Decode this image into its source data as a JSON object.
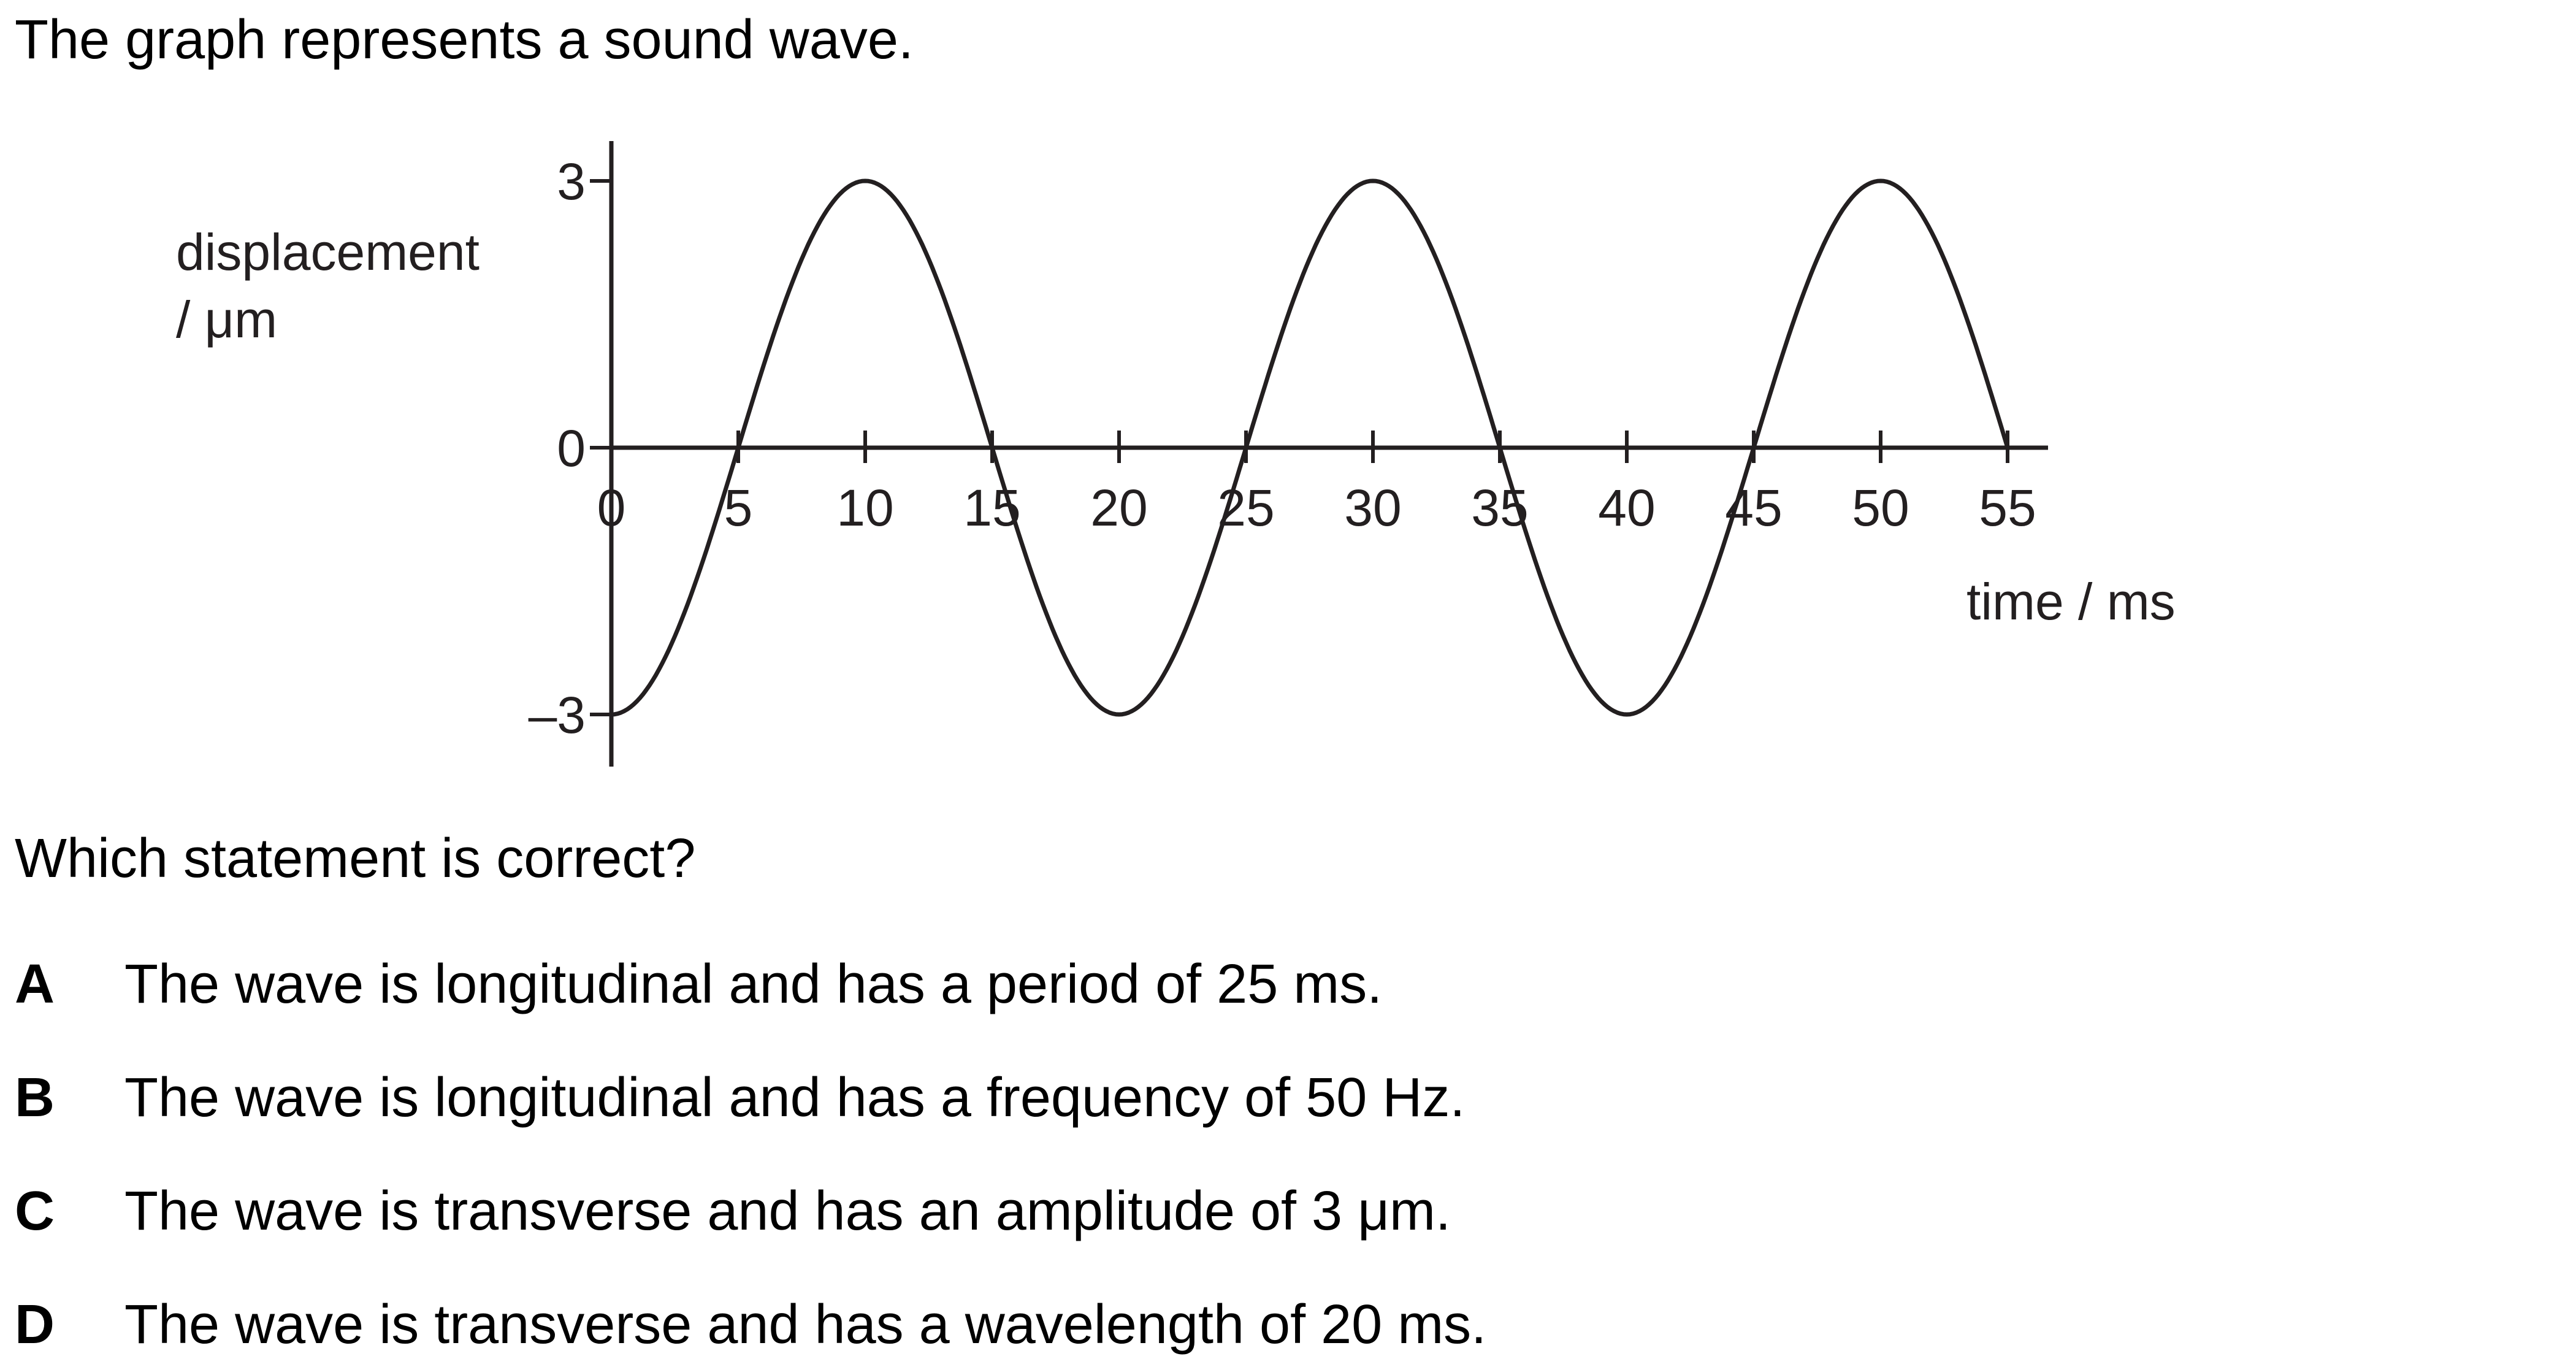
{
  "intro_text": "The graph represents a sound wave.",
  "question_text": "Which statement is correct?",
  "options": [
    {
      "letter": "A",
      "text": "The wave is longitudinal and has a period of 25 ms."
    },
    {
      "letter": "B",
      "text": "The wave is longitudinal and has a frequency of 50 Hz."
    },
    {
      "letter": "C",
      "text": "The wave is transverse and has an amplitude of 3 μm."
    },
    {
      "letter": "D",
      "text": "The wave is transverse and has a wavelength of 20 ms."
    }
  ],
  "chart_data": {
    "type": "line",
    "title": "",
    "xlabel": "time / ms",
    "ylabel": "displacement / μm",
    "xlim": [
      0,
      55
    ],
    "ylim": [
      -3,
      3
    ],
    "x_ticks": [
      0,
      5,
      10,
      15,
      20,
      25,
      30,
      35,
      40,
      45,
      50,
      55
    ],
    "x_tick_labels": [
      "0",
      "5",
      "10",
      "15",
      "20",
      "25",
      "30",
      "35",
      "40",
      "45",
      "50",
      "55"
    ],
    "y_ticks": [
      -3,
      0,
      3
    ],
    "y_tick_labels": [
      "–3",
      "0",
      "3"
    ],
    "grid": false,
    "series": [
      {
        "x": [
          0,
          5,
          10,
          15,
          20,
          25,
          30,
          35,
          40,
          45,
          50,
          55
        ],
        "y": [
          -3,
          0,
          3,
          0,
          -3,
          0,
          3,
          0,
          -3,
          0,
          3,
          0
        ]
      }
    ],
    "line_color": "#231f20"
  }
}
